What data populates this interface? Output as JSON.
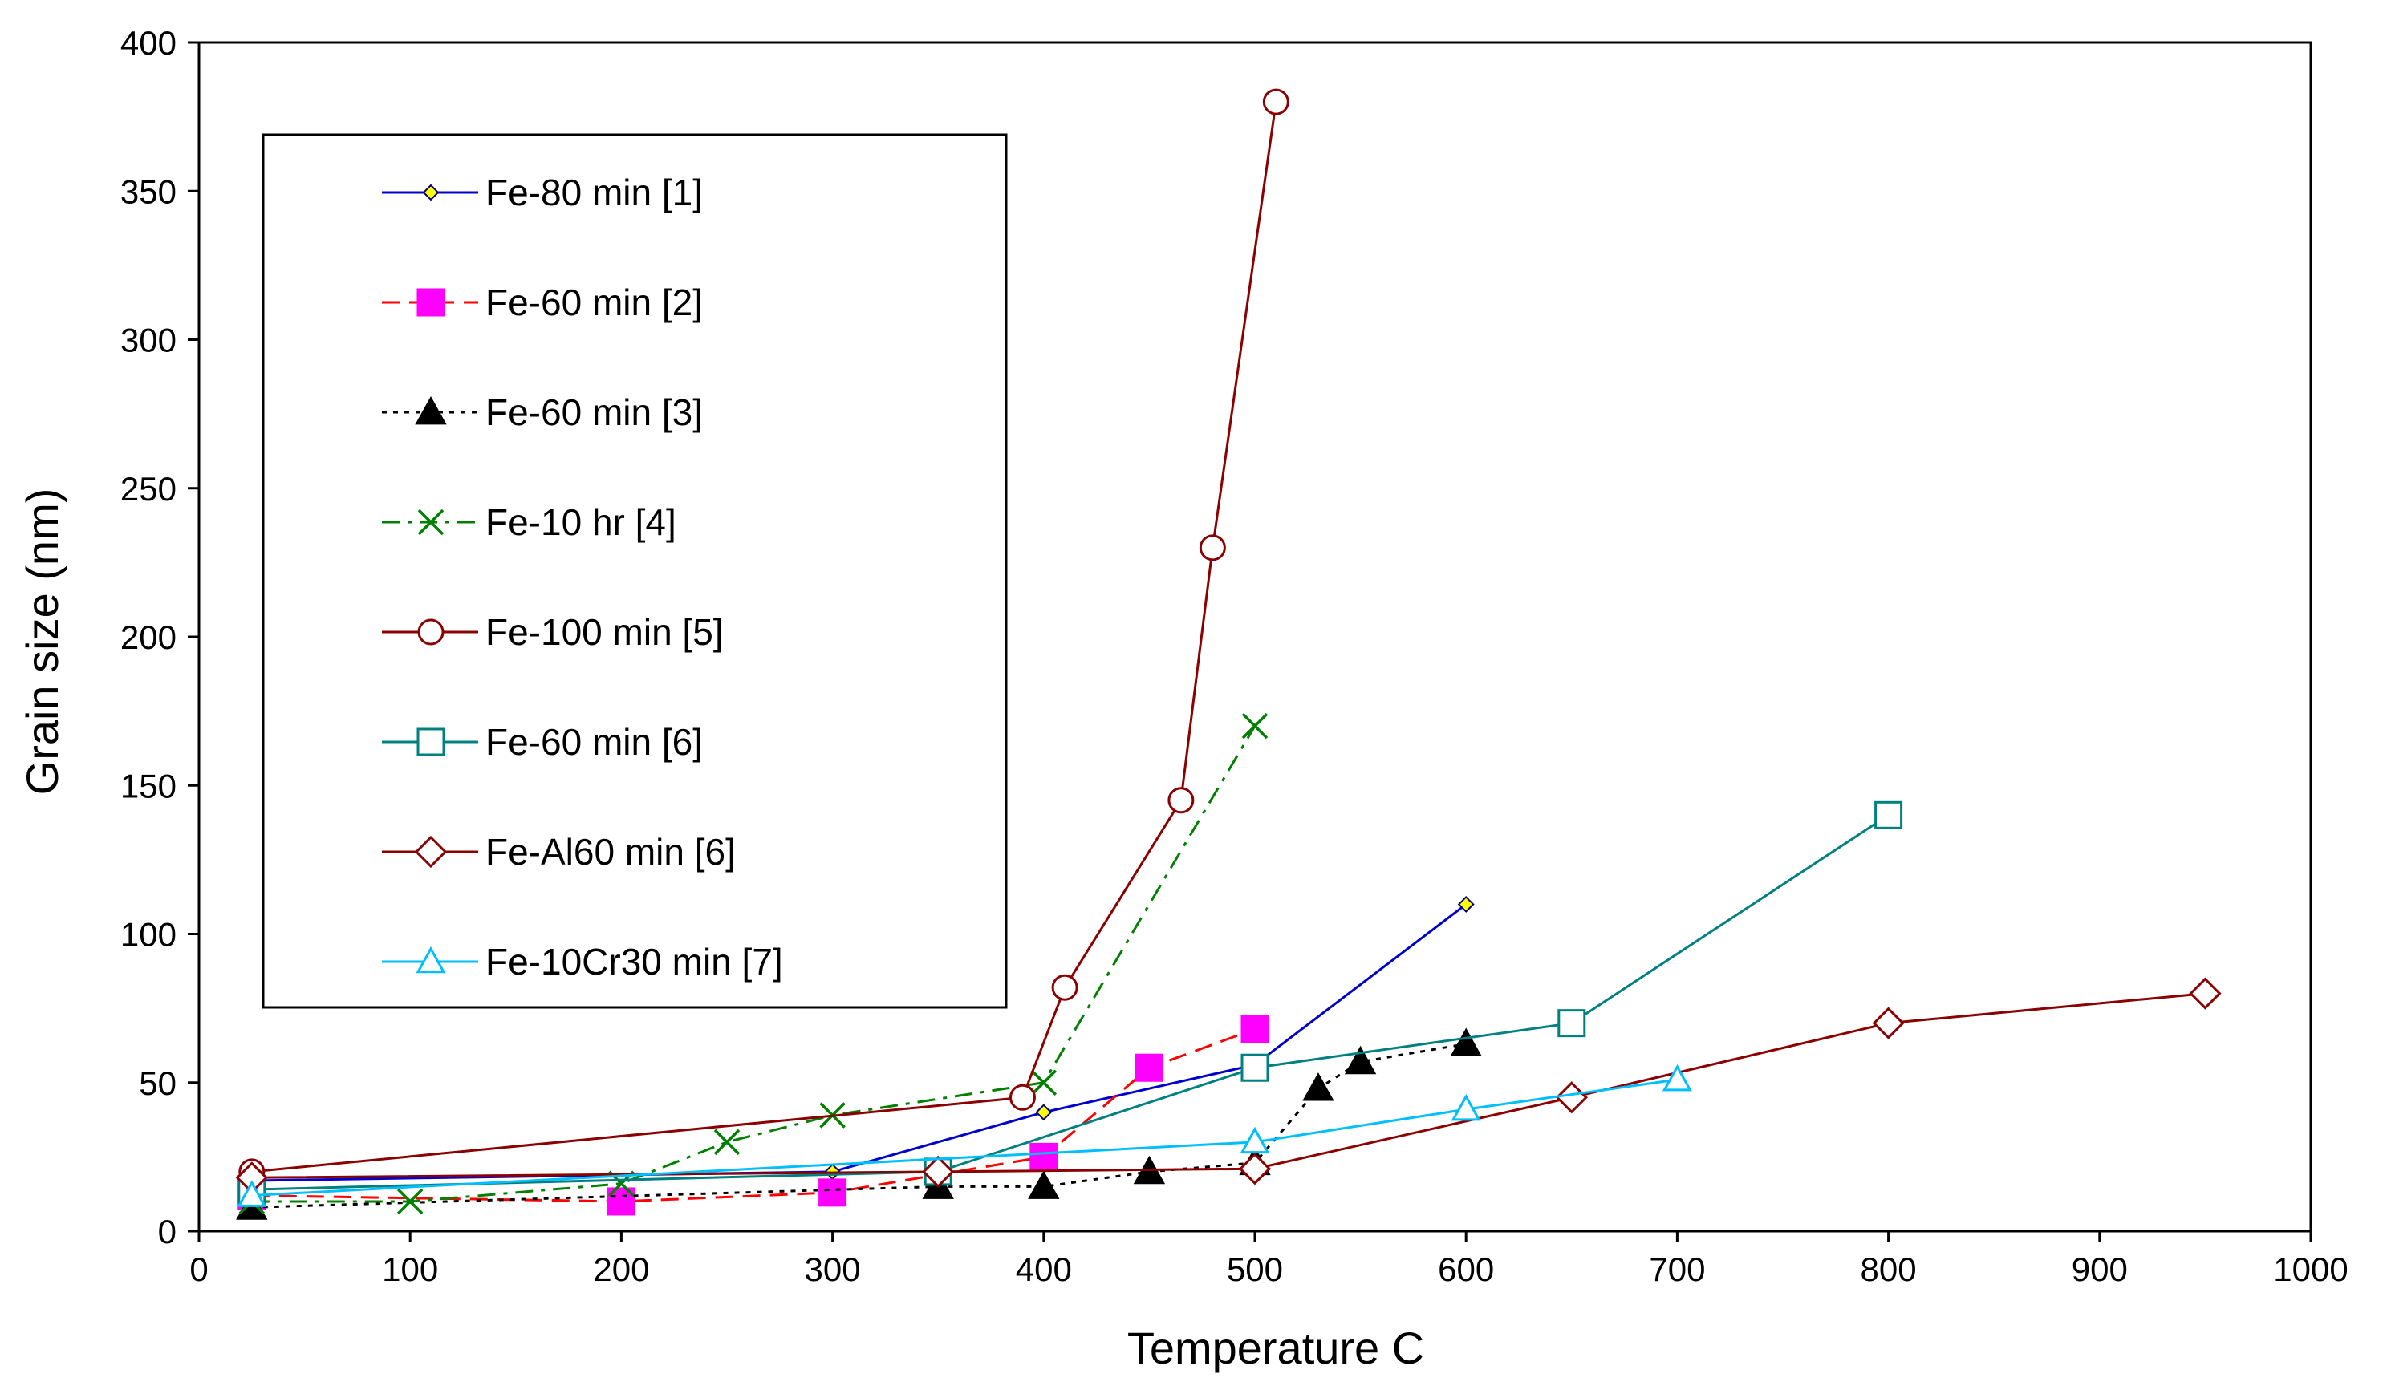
{
  "chart_data": {
    "type": "line",
    "title": "",
    "xlabel": "Temperature C",
    "ylabel": "Grain size (nm)",
    "xlim": [
      0,
      1000
    ],
    "ylim": [
      0,
      400
    ],
    "xticks": [
      0,
      100,
      200,
      300,
      400,
      500,
      600,
      700,
      800,
      900,
      1000
    ],
    "yticks": [
      0,
      50,
      100,
      150,
      200,
      250,
      300,
      350,
      400
    ],
    "grid": false,
    "legend_position": "top-left",
    "series": [
      {
        "name": "Fe-80 min  [1]",
        "color": "#0000cc",
        "dash": "solid",
        "marker": "small-diamond",
        "marker_fill": "#ffff00",
        "x": [
          25,
          300,
          400,
          500,
          600
        ],
        "y": [
          17,
          20,
          40,
          56,
          110
        ]
      },
      {
        "name": "Fe-60 min [2]",
        "color": "#ff0000",
        "dash": "dashed",
        "marker": "square-filled",
        "marker_fill": "#ff00ff",
        "x": [
          25,
          200,
          300,
          400,
          450,
          500
        ],
        "y": [
          12,
          10,
          13,
          25,
          55,
          68
        ]
      },
      {
        "name": "Fe-60 min [3]",
        "color": "#000000",
        "dash": "dotted",
        "marker": "triangle-filled",
        "marker_fill": "#000000",
        "x": [
          25,
          350,
          400,
          450,
          500,
          530,
          550,
          600
        ],
        "y": [
          8,
          15,
          15,
          20,
          23,
          48,
          57,
          63
        ]
      },
      {
        "name": "Fe-10 hr [4]",
        "color": "#008000",
        "dash": "dashdot",
        "marker": "x",
        "marker_fill": "none",
        "x": [
          25,
          100,
          200,
          250,
          300,
          400,
          500
        ],
        "y": [
          10,
          10,
          16,
          30,
          39,
          50,
          170
        ]
      },
      {
        "name": "Fe-100 min [5]",
        "color": "#8b0000",
        "dash": "solid",
        "marker": "circle-open",
        "marker_fill": "#ffffff",
        "x": [
          25,
          390,
          410,
          465,
          480,
          510
        ],
        "y": [
          20,
          45,
          82,
          145,
          230,
          380
        ]
      },
      {
        "name": "Fe-60 min [6]",
        "color": "#008080",
        "dash": "solid",
        "marker": "square-open",
        "marker_fill": "#ffffff",
        "x": [
          25,
          350,
          500,
          650,
          800
        ],
        "y": [
          14,
          20,
          55,
          70,
          140
        ]
      },
      {
        "name": "Fe-Al60 min [6]",
        "color": "#8b0000",
        "dash": "solid",
        "marker": "diamond-open",
        "marker_fill": "#ffffff",
        "x": [
          25,
          350,
          500,
          650,
          800,
          950
        ],
        "y": [
          18,
          20,
          21,
          45,
          70,
          80
        ]
      },
      {
        "name": "Fe-10Cr30 min [7]",
        "color": "#00bfff",
        "dash": "solid",
        "marker": "triangle-open",
        "marker_fill": "#ffffff",
        "x": [
          25,
          500,
          600,
          700
        ],
        "y": [
          12,
          30,
          41,
          51
        ]
      }
    ]
  }
}
